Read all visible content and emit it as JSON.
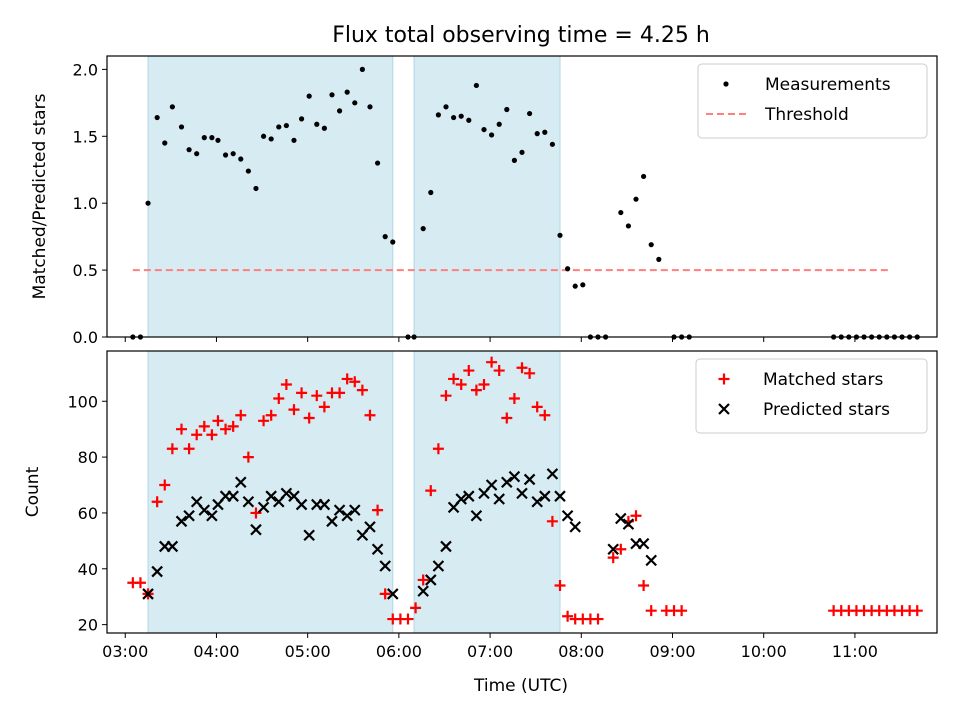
{
  "title": "Flux total observing time = 4.25 h",
  "xlabel": "Time (UTC)",
  "x_tick_labels": [
    "03:00",
    "04:00",
    "05:00",
    "06:00",
    "07:00",
    "08:00",
    "09:00",
    "10:00",
    "11:00"
  ],
  "colors": {
    "shade": "#add8e6",
    "measurements": "#000000",
    "threshold": "#ff7f7f",
    "matched": "#ff0000",
    "predicted": "#000000"
  },
  "chart_data": [
    {
      "type": "scatter",
      "name": "top",
      "ylabel": "Matched/Predicted stars",
      "xlim": [
        "02:48",
        "11:54"
      ],
      "ylim": [
        0,
        2.1
      ],
      "y_ticks": [
        0.0,
        0.5,
        1.0,
        1.5,
        2.0
      ],
      "y_tick_labels": [
        "0.0",
        "0.5",
        "1.0",
        "1.5",
        "2.0"
      ],
      "legend_position": "top-right",
      "shaded_intervals": [
        [
          "03:15",
          "05:56"
        ],
        [
          "06:10",
          "07:46"
        ]
      ],
      "threshold": {
        "name": "Threshold",
        "y": 0.5,
        "x_range": [
          "03:05",
          "11:22"
        ]
      },
      "series": [
        {
          "name": "Measurements",
          "marker": "dot",
          "points": [
            [
              "03:05",
              0.0
            ],
            [
              "03:10",
              0.0
            ],
            [
              "03:15",
              1.0
            ],
            [
              "03:21",
              1.64
            ],
            [
              "03:26",
              1.45
            ],
            [
              "03:31",
              1.72
            ],
            [
              "03:37",
              1.57
            ],
            [
              "03:42",
              1.4
            ],
            [
              "03:47",
              1.37
            ],
            [
              "03:52",
              1.49
            ],
            [
              "03:57",
              1.49
            ],
            [
              "04:01",
              1.47
            ],
            [
              "04:06",
              1.36
            ],
            [
              "04:11",
              1.37
            ],
            [
              "04:16",
              1.33
            ],
            [
              "04:21",
              1.24
            ],
            [
              "04:26",
              1.11
            ],
            [
              "04:31",
              1.5
            ],
            [
              "04:36",
              1.48
            ],
            [
              "04:41",
              1.57
            ],
            [
              "04:46",
              1.58
            ],
            [
              "04:51",
              1.47
            ],
            [
              "04:56",
              1.63
            ],
            [
              "05:01",
              1.8
            ],
            [
              "05:06",
              1.59
            ],
            [
              "05:11",
              1.56
            ],
            [
              "05:16",
              1.81
            ],
            [
              "05:21",
              1.69
            ],
            [
              "05:26",
              1.83
            ],
            [
              "05:31",
              1.75
            ],
            [
              "05:36",
              2.0
            ],
            [
              "05:41",
              1.72
            ],
            [
              "05:46",
              1.3
            ],
            [
              "05:51",
              0.75
            ],
            [
              "05:56",
              0.71
            ],
            [
              "06:06",
              0.0
            ],
            [
              "06:10",
              0.0
            ],
            [
              "06:16",
              0.81
            ],
            [
              "06:21",
              1.08
            ],
            [
              "06:26",
              1.66
            ],
            [
              "06:31",
              1.72
            ],
            [
              "06:36",
              1.64
            ],
            [
              "06:41",
              1.65
            ],
            [
              "06:46",
              1.62
            ],
            [
              "06:51",
              1.88
            ],
            [
              "06:56",
              1.55
            ],
            [
              "07:01",
              1.51
            ],
            [
              "07:06",
              1.59
            ],
            [
              "07:11",
              1.7
            ],
            [
              "07:16",
              1.32
            ],
            [
              "07:21",
              1.38
            ],
            [
              "07:26",
              1.67
            ],
            [
              "07:31",
              1.52
            ],
            [
              "07:36",
              1.53
            ],
            [
              "07:41",
              1.44
            ],
            [
              "07:46",
              0.76
            ],
            [
              "07:51",
              0.51
            ],
            [
              "07:56",
              0.38
            ],
            [
              "08:01",
              0.39
            ],
            [
              "08:06",
              0.0
            ],
            [
              "08:11",
              0.0
            ],
            [
              "08:16",
              0.0
            ],
            [
              "08:26",
              0.93
            ],
            [
              "08:31",
              0.83
            ],
            [
              "08:36",
              1.03
            ],
            [
              "08:41",
              1.2
            ],
            [
              "08:46",
              0.69
            ],
            [
              "08:51",
              0.58
            ],
            [
              "09:01",
              0.0
            ],
            [
              "09:06",
              0.0
            ],
            [
              "09:11",
              0.0
            ],
            [
              "10:46",
              0.0
            ],
            [
              "10:51",
              0.0
            ],
            [
              "10:56",
              0.0
            ],
            [
              "11:01",
              0.0
            ],
            [
              "11:06",
              0.0
            ],
            [
              "11:11",
              0.0
            ],
            [
              "11:16",
              0.0
            ],
            [
              "11:21",
              0.0
            ],
            [
              "11:26",
              0.0
            ],
            [
              "11:31",
              0.0
            ],
            [
              "11:36",
              0.0
            ],
            [
              "11:41",
              0.0
            ]
          ]
        }
      ]
    },
    {
      "type": "scatter",
      "name": "bottom",
      "ylabel": "Count",
      "xlim": [
        "02:48",
        "11:54"
      ],
      "ylim": [
        17,
        118
      ],
      "y_ticks": [
        20,
        40,
        60,
        80,
        100
      ],
      "y_tick_labels": [
        "20",
        "40",
        "60",
        "80",
        "100"
      ],
      "legend_position": "top-right",
      "shaded_intervals": [
        [
          "03:15",
          "05:56"
        ],
        [
          "06:10",
          "07:46"
        ]
      ],
      "series": [
        {
          "name": "Matched stars",
          "marker": "plus",
          "points": [
            [
              "03:05",
              35
            ],
            [
              "03:10",
              35
            ],
            [
              "03:15",
              31
            ],
            [
              "03:21",
              64
            ],
            [
              "03:26",
              70
            ],
            [
              "03:31",
              83
            ],
            [
              "03:37",
              90
            ],
            [
              "03:42",
              83
            ],
            [
              "03:47",
              88
            ],
            [
              "03:52",
              91
            ],
            [
              "03:57",
              88
            ],
            [
              "04:01",
              93
            ],
            [
              "04:06",
              90
            ],
            [
              "04:11",
              91
            ],
            [
              "04:16",
              95
            ],
            [
              "04:21",
              80
            ],
            [
              "04:26",
              60
            ],
            [
              "04:31",
              93
            ],
            [
              "04:36",
              95
            ],
            [
              "04:41",
              101
            ],
            [
              "04:46",
              106
            ],
            [
              "04:51",
              97
            ],
            [
              "04:56",
              103
            ],
            [
              "05:01",
              94
            ],
            [
              "05:06",
              102
            ],
            [
              "05:11",
              98
            ],
            [
              "05:16",
              103
            ],
            [
              "05:21",
              103
            ],
            [
              "05:26",
              108
            ],
            [
              "05:31",
              107
            ],
            [
              "05:36",
              104
            ],
            [
              "05:41",
              95
            ],
            [
              "05:46",
              61
            ],
            [
              "05:51",
              31
            ],
            [
              "05:56",
              22
            ],
            [
              "06:01",
              22
            ],
            [
              "06:06",
              22
            ],
            [
              "06:11",
              26
            ],
            [
              "06:16",
              36
            ],
            [
              "06:21",
              68
            ],
            [
              "06:26",
              83
            ],
            [
              "06:31",
              102
            ],
            [
              "06:36",
              108
            ],
            [
              "06:41",
              106
            ],
            [
              "06:46",
              111
            ],
            [
              "06:51",
              104
            ],
            [
              "06:56",
              106
            ],
            [
              "07:01",
              114
            ],
            [
              "07:06",
              111
            ],
            [
              "07:11",
              94
            ],
            [
              "07:16",
              101
            ],
            [
              "07:21",
              112
            ],
            [
              "07:26",
              110
            ],
            [
              "07:31",
              98
            ],
            [
              "07:36",
              95
            ],
            [
              "07:41",
              57
            ],
            [
              "07:46",
              34
            ],
            [
              "07:51",
              23
            ],
            [
              "07:56",
              22
            ],
            [
              "08:01",
              22
            ],
            [
              "08:06",
              22
            ],
            [
              "08:11",
              22
            ],
            [
              "08:21",
              44
            ],
            [
              "08:26",
              47
            ],
            [
              "08:31",
              57
            ],
            [
              "08:36",
              59
            ],
            [
              "08:41",
              34
            ],
            [
              "08:46",
              25
            ],
            [
              "08:56",
              25
            ],
            [
              "09:01",
              25
            ],
            [
              "09:06",
              25
            ],
            [
              "10:46",
              25
            ],
            [
              "10:51",
              25
            ],
            [
              "10:56",
              25
            ],
            [
              "11:01",
              25
            ],
            [
              "11:06",
              25
            ],
            [
              "11:11",
              25
            ],
            [
              "11:16",
              25
            ],
            [
              "11:21",
              25
            ],
            [
              "11:26",
              25
            ],
            [
              "11:31",
              25
            ],
            [
              "11:36",
              25
            ],
            [
              "11:41",
              25
            ]
          ]
        },
        {
          "name": "Predicted stars",
          "marker": "x",
          "points": [
            [
              "03:15",
              31
            ],
            [
              "03:21",
              39
            ],
            [
              "03:26",
              48
            ],
            [
              "03:31",
              48
            ],
            [
              "03:37",
              57
            ],
            [
              "03:42",
              59
            ],
            [
              "03:47",
              64
            ],
            [
              "03:52",
              61
            ],
            [
              "03:57",
              59
            ],
            [
              "04:01",
              63
            ],
            [
              "04:06",
              66
            ],
            [
              "04:11",
              66
            ],
            [
              "04:16",
              71
            ],
            [
              "04:21",
              64
            ],
            [
              "04:26",
              54
            ],
            [
              "04:31",
              62
            ],
            [
              "04:36",
              66
            ],
            [
              "04:41",
              64
            ],
            [
              "04:46",
              67
            ],
            [
              "04:51",
              66
            ],
            [
              "04:56",
              63
            ],
            [
              "05:01",
              52
            ],
            [
              "05:06",
              63
            ],
            [
              "05:11",
              63
            ],
            [
              "05:16",
              57
            ],
            [
              "05:21",
              61
            ],
            [
              "05:26",
              59
            ],
            [
              "05:31",
              61
            ],
            [
              "05:36",
              52
            ],
            [
              "05:41",
              55
            ],
            [
              "05:46",
              47
            ],
            [
              "05:51",
              41
            ],
            [
              "05:56",
              31
            ],
            [
              "06:16",
              32
            ],
            [
              "06:21",
              36
            ],
            [
              "06:26",
              41
            ],
            [
              "06:31",
              48
            ],
            [
              "06:36",
              62
            ],
            [
              "06:41",
              65
            ],
            [
              "06:46",
              66
            ],
            [
              "06:51",
              59
            ],
            [
              "06:56",
              67
            ],
            [
              "07:01",
              70
            ],
            [
              "07:06",
              65
            ],
            [
              "07:11",
              71
            ],
            [
              "07:16",
              73
            ],
            [
              "07:21",
              67
            ],
            [
              "07:26",
              72
            ],
            [
              "07:31",
              64
            ],
            [
              "07:36",
              66
            ],
            [
              "07:41",
              74
            ],
            [
              "07:46",
              66
            ],
            [
              "07:51",
              59
            ],
            [
              "07:56",
              55
            ],
            [
              "08:21",
              47
            ],
            [
              "08:26",
              58
            ],
            [
              "08:31",
              56
            ],
            [
              "08:36",
              49
            ],
            [
              "08:41",
              49
            ],
            [
              "08:46",
              43
            ]
          ]
        }
      ]
    }
  ]
}
